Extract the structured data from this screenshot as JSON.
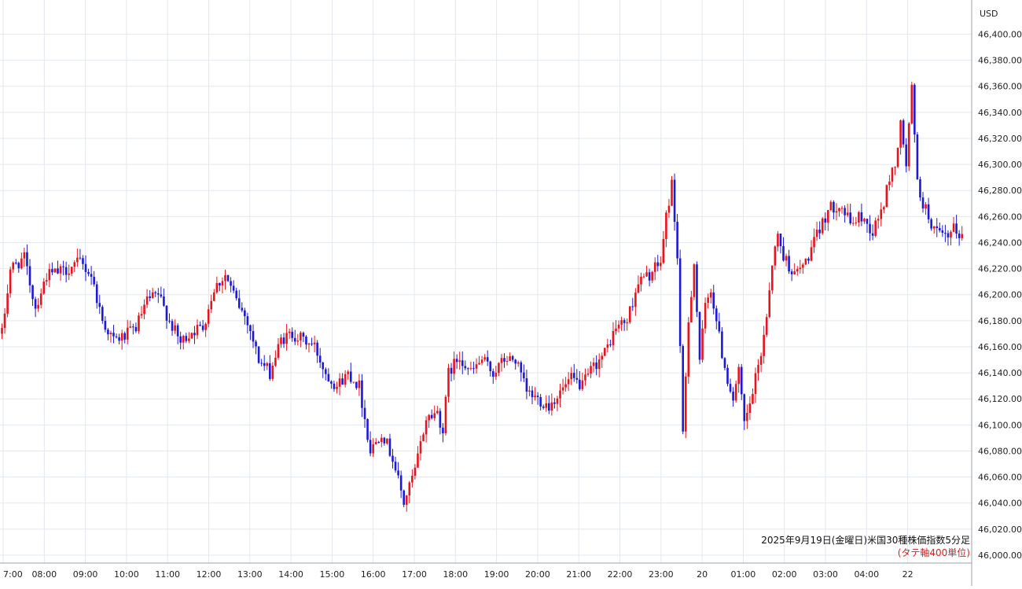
{
  "colors": {
    "up": "#e8141d",
    "down": "#1a1ad8",
    "grid": "#e3e8ee",
    "axis_text": "#222222",
    "note": "#e0201a"
  },
  "caption": {
    "title": "2025年9月19日(金曜日)米国30種株価指数5分足",
    "note": "(タテ軸400単位)"
  },
  "chart_data": {
    "type": "candlestick",
    "currency": "USD",
    "ylim": [
      46000,
      46410
    ],
    "y_ticks": [
      46000,
      46020,
      46040,
      46060,
      46080,
      46100,
      46120,
      46140,
      46160,
      46180,
      46200,
      46220,
      46240,
      46260,
      46280,
      46300,
      46320,
      46340,
      46360,
      46380,
      46400
    ],
    "y_tick_labels": [
      "46,000.00",
      "46,020.00",
      "46,040.00",
      "46,060.00",
      "46,080.00",
      "46,100.00",
      "46,120.00",
      "46,140.00",
      "46,160.00",
      "46,180.00",
      "46,200.00",
      "46,220.00",
      "46,240.00",
      "46,260.00",
      "46,280.00",
      "46,300.00",
      "46,320.00",
      "46,340.00",
      "46,360.00",
      "46,380.00",
      "46,400.00"
    ],
    "x_labels": [
      "7:00",
      "08:00",
      "09:00",
      "10:00",
      "11:00",
      "12:00",
      "13:00",
      "14:00",
      "15:00",
      "16:00",
      "17:00",
      "18:00",
      "19:00",
      "20:00",
      "21:00",
      "22:00",
      "23:00",
      "20",
      "01:00",
      "02:00",
      "03:00",
      "04:00",
      "22"
    ],
    "grid": true,
    "anchors": [
      [
        0,
        46170
      ],
      [
        3,
        46220
      ],
      [
        8,
        46228
      ],
      [
        12,
        46190
      ],
      [
        16,
        46215
      ],
      [
        22,
        46218
      ],
      [
        28,
        46225
      ],
      [
        32,
        46215
      ],
      [
        36,
        46180
      ],
      [
        40,
        46165
      ],
      [
        44,
        46168
      ],
      [
        48,
        46175
      ],
      [
        52,
        46195
      ],
      [
        56,
        46200
      ],
      [
        60,
        46180
      ],
      [
        64,
        46163
      ],
      [
        68,
        46172
      ],
      [
        72,
        46175
      ],
      [
        76,
        46205
      ],
      [
        80,
        46215
      ],
      [
        84,
        46195
      ],
      [
        88,
        46180
      ],
      [
        92,
        46150
      ],
      [
        96,
        46140
      ],
      [
        100,
        46165
      ],
      [
        104,
        46170
      ],
      [
        108,
        46165
      ],
      [
        112,
        46160
      ],
      [
        116,
        46140
      ],
      [
        120,
        46130
      ],
      [
        124,
        46140
      ],
      [
        128,
        46130
      ],
      [
        132,
        46080
      ],
      [
        136,
        46095
      ],
      [
        140,
        46075
      ],
      [
        144,
        46040
      ],
      [
        148,
        46065
      ],
      [
        152,
        46105
      ],
      [
        156,
        46110
      ],
      [
        158,
        46095
      ],
      [
        160,
        46140
      ],
      [
        164,
        46153
      ],
      [
        168,
        46140
      ],
      [
        172,
        46150
      ],
      [
        176,
        46140
      ],
      [
        180,
        46150
      ],
      [
        184,
        46150
      ],
      [
        188,
        46125
      ],
      [
        192,
        46120
      ],
      [
        196,
        46115
      ],
      [
        200,
        46125
      ],
      [
        204,
        46135
      ],
      [
        208,
        46130
      ],
      [
        212,
        46145
      ],
      [
        216,
        46155
      ],
      [
        220,
        46175
      ],
      [
        224,
        46180
      ],
      [
        228,
        46210
      ],
      [
        232,
        46215
      ],
      [
        236,
        46225
      ],
      [
        238,
        46260
      ],
      [
        240,
        46285
      ],
      [
        242,
        46230
      ],
      [
        244,
        46090
      ],
      [
        246,
        46180
      ],
      [
        248,
        46225
      ],
      [
        250,
        46150
      ],
      [
        252,
        46190
      ],
      [
        254,
        46205
      ],
      [
        256,
        46180
      ],
      [
        258,
        46155
      ],
      [
        260,
        46135
      ],
      [
        262,
        46120
      ],
      [
        264,
        46140
      ],
      [
        266,
        46100
      ],
      [
        268,
        46115
      ],
      [
        270,
        46135
      ],
      [
        272,
        46155
      ],
      [
        274,
        46185
      ],
      [
        276,
        46225
      ],
      [
        278,
        46245
      ],
      [
        280,
        46230
      ],
      [
        284,
        46215
      ],
      [
        288,
        46225
      ],
      [
        292,
        46245
      ],
      [
        296,
        46265
      ],
      [
        300,
        46270
      ],
      [
        304,
        46255
      ],
      [
        308,
        46260
      ],
      [
        312,
        46248
      ],
      [
        316,
        46270
      ],
      [
        318,
        46290
      ],
      [
        320,
        46300
      ],
      [
        322,
        46330
      ],
      [
        324,
        46300
      ],
      [
        326,
        46358
      ],
      [
        328,
        46285
      ],
      [
        330,
        46270
      ],
      [
        332,
        46260
      ],
      [
        334,
        46250
      ],
      [
        336,
        46245
      ],
      [
        339,
        46243
      ],
      [
        341,
        46250
      ],
      [
        344,
        46245
      ]
    ]
  }
}
